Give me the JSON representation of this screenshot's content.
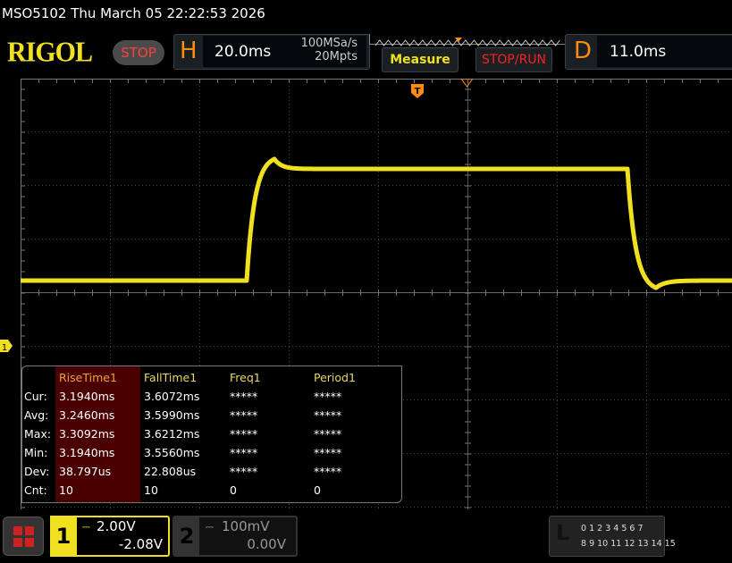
{
  "header": {
    "title": "MSO5102  Thu March 05 22:22:53 2026",
    "logo": "RIGOL",
    "run_state": "STOP"
  },
  "horizontal": {
    "letter": "H",
    "timebase": "20.0ms",
    "sample_rate": "100MSa/s",
    "memory_depth": "20Mpts"
  },
  "buttons": {
    "measure": "Measure",
    "stop_run": "STOP/RUN"
  },
  "delay": {
    "letter": "D",
    "value": "11.0ms"
  },
  "trigger": {
    "marker": "T"
  },
  "channel_marker": "1",
  "measurements": {
    "columns": [
      "RiseTime1",
      "FallTime1",
      "Freq1",
      "Period1"
    ],
    "rows": [
      {
        "label": "Cur:",
        "values": [
          "3.1940ms",
          "3.6072ms",
          "*****",
          "*****"
        ]
      },
      {
        "label": "Avg:",
        "values": [
          "3.2460ms",
          "3.5990ms",
          "*****",
          "*****"
        ]
      },
      {
        "label": "Max:",
        "values": [
          "3.3092ms",
          "3.6212ms",
          "*****",
          "*****"
        ]
      },
      {
        "label": "Min:",
        "values": [
          "3.1940ms",
          "3.5560ms",
          "*****",
          "*****"
        ]
      },
      {
        "label": "Dev:",
        "values": [
          "38.797us",
          "22.808us",
          "*****",
          "*****"
        ]
      },
      {
        "label": "Cnt:",
        "values": [
          "10",
          "10",
          "0",
          "0"
        ]
      }
    ]
  },
  "channels": [
    {
      "num": "1",
      "scale": "2.00V",
      "offset": "-2.08V",
      "active": true,
      "color": "#f0e020"
    },
    {
      "num": "2",
      "scale": "100mV",
      "offset": "0.00V",
      "active": false,
      "color": "#888888"
    }
  ],
  "logic": {
    "letter": "L",
    "row1": "0 1 2 3  4 5 6 7",
    "row2": "8 9 10 11 12 13 14 15"
  },
  "colors": {
    "trace": "#f0e020",
    "accent": "#ff8c10",
    "stop": "#ff4040"
  }
}
